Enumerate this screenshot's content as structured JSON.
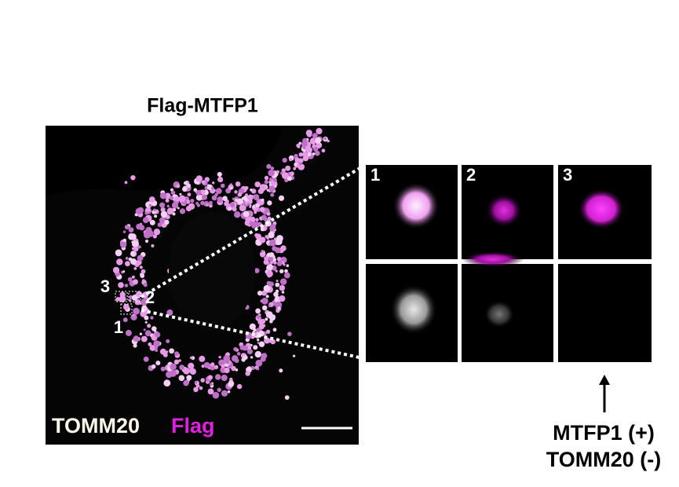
{
  "figure": {
    "title": "Flag-MTFP1",
    "legend": {
      "channel_1": "TOMM20",
      "channel_2": "Flag"
    },
    "roi_labels": [
      "1",
      "2",
      "3"
    ],
    "inset_labels": [
      "1",
      "2",
      "3"
    ],
    "annotation": {
      "line_1": "MTFP1 (+)",
      "line_2": "TOMM20 (-)"
    }
  }
}
